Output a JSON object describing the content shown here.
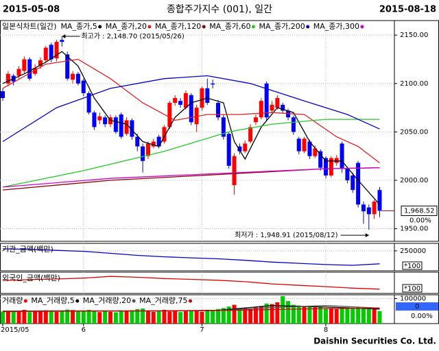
{
  "header": {
    "start": "2015-05-08",
    "title": "종합주가지수 (001), 일간",
    "end": "2015-08-18"
  },
  "footer": "Daishin Securities Co. Ltd.",
  "chart_data": [
    {
      "type": "candlestick",
      "legend_title": "일본식차트(일간)",
      "up_color": "#ff0000",
      "down_color": "#0000ff",
      "open": [
        2092,
        2100,
        2108,
        2108,
        2113,
        2125,
        2110,
        2118,
        2124,
        2140,
        2126,
        2145,
        2130,
        2104,
        2110,
        2103,
        2090,
        2070,
        2062,
        2065,
        2058,
        2065,
        2068,
        2048,
        2062,
        2045,
        2035,
        2025,
        2035,
        2045,
        2040,
        2055,
        2080,
        2082,
        2075,
        2088,
        2058,
        2075,
        2095,
        2100,
        2080,
        2065,
        2048,
        1995,
        2035,
        2030,
        2040,
        2060,
        2065,
        2100,
        2072,
        2075,
        2078,
        2072,
        2065,
        2043,
        2030,
        2040,
        2025,
        2030,
        2023,
        2005,
        2018,
        2038,
        2012,
        2005,
        2018,
        1975,
        1972,
        1965,
        1990
      ],
      "high": [
        2095,
        2113,
        2110,
        2118,
        2128,
        2127,
        2120,
        2127,
        2139,
        2142,
        2145,
        2148.7,
        2133,
        2113,
        2112,
        2105,
        2092,
        2072,
        2070,
        2067,
        2068,
        2067,
        2070,
        2065,
        2064,
        2048,
        2038,
        2040,
        2043,
        2047,
        2057,
        2082,
        2088,
        2085,
        2093,
        2090,
        2078,
        2097,
        2105,
        2104,
        2083,
        2068,
        2050,
        2028,
        2038,
        2041,
        2058,
        2068,
        2085,
        2102,
        2082,
        2088,
        2080,
        2074,
        2067,
        2045,
        2045,
        2042,
        2036,
        2032,
        2025,
        2025,
        2026,
        2040,
        2014,
        2008,
        2020,
        1978,
        1975,
        1980,
        1993
      ],
      "low": [
        2082,
        2097,
        2098,
        2105,
        2110,
        2103,
        2108,
        2115,
        2122,
        2122,
        2123,
        2138,
        2103,
        2100,
        2098,
        2087,
        2068,
        2052,
        2058,
        2055,
        2055,
        2048,
        2043,
        2046,
        2042,
        2030,
        2008,
        2022,
        2033,
        2033,
        2038,
        2053,
        2077,
        2075,
        2073,
        2057,
        2050,
        2072,
        2078,
        2095,
        2062,
        2042,
        2012,
        1985,
        2027,
        2028,
        2038,
        2057,
        2063,
        2062,
        2070,
        2073,
        2069,
        2062,
        2047,
        2027,
        2028,
        2022,
        2023,
        2010,
        2002,
        2003,
        2015,
        2008,
        1997,
        1987,
        1972,
        1955,
        1948.91,
        1960,
        1962
      ],
      "close": [
        2085,
        2110,
        2102,
        2115,
        2125,
        2105,
        2116,
        2124,
        2137,
        2125,
        2143,
        2143,
        2105,
        2110,
        2100,
        2090,
        2070,
        2055,
        2066,
        2058,
        2065,
        2050,
        2045,
        2062,
        2045,
        2035,
        2020,
        2038,
        2040,
        2035,
        2055,
        2080,
        2085,
        2078,
        2090,
        2060,
        2075,
        2095,
        2080,
        2099,
        2065,
        2045,
        2015,
        2025,
        2030,
        2038,
        2055,
        2065,
        2082,
        2065,
        2078,
        2085,
        2072,
        2065,
        2050,
        2030,
        2043,
        2025,
        2033,
        2013,
        2005,
        2023,
        2023,
        2012,
        2000,
        1990,
        1975,
        1968,
        1965,
        1978,
        1968.52
      ],
      "series": [
        {
          "name": "MA_종가,5",
          "color": "#000000",
          "x": [
            0,
            4,
            8,
            11,
            14,
            17,
            20,
            23,
            26,
            29,
            32,
            35,
            38,
            41,
            43,
            45,
            48,
            51,
            54,
            57,
            60,
            63,
            66,
            70
          ],
          "values": [
            2100,
            2110,
            2122,
            2133,
            2118,
            2085,
            2062,
            2058,
            2040,
            2035,
            2065,
            2080,
            2085,
            2080,
            2040,
            2022,
            2055,
            2075,
            2070,
            2040,
            2020,
            2020,
            2000,
            1975
          ]
        },
        {
          "name": "MA_종가,20",
          "color": "#e02020",
          "x": [
            0,
            8,
            14,
            20,
            26,
            32,
            38,
            44,
            50,
            56,
            62,
            66,
            70
          ],
          "values": [
            2095,
            2120,
            2125,
            2105,
            2080,
            2062,
            2068,
            2068,
            2070,
            2068,
            2045,
            2035,
            2018
          ]
        },
        {
          "name": "MA_종가,120",
          "color": "#8b0000",
          "x": [
            0,
            20,
            40,
            60,
            70
          ],
          "values": [
            1990,
            2000,
            2006,
            2012,
            2013
          ]
        },
        {
          "name": "MA_종가,60",
          "color": "#22cc22",
          "x": [
            0,
            15,
            30,
            42,
            50,
            60,
            70
          ],
          "values": [
            1993,
            2010,
            2030,
            2050,
            2058,
            2063,
            2063
          ]
        },
        {
          "name": "MA_종가,200",
          "color": "#0000cc",
          "x": [
            0,
            10,
            20,
            30,
            38,
            46,
            56,
            64,
            70
          ],
          "values": [
            2040,
            2075,
            2095,
            2105,
            2108,
            2100,
            2082,
            2068,
            2053
          ]
        },
        {
          "name": "MA_종가,300",
          "color": "#cc00cc",
          "x": [
            0,
            20,
            40,
            60,
            70
          ],
          "values": [
            1993,
            2002,
            2007,
            2012,
            2013
          ]
        }
      ],
      "ylim": [
        1937,
        2165
      ],
      "yticks": [
        {
          "value": 2150,
          "label": "2150.00"
        },
        {
          "value": 2100,
          "label": "2100.00"
        },
        {
          "value": 2050,
          "label": "2050.00"
        },
        {
          "value": 2000,
          "label": "2000.00"
        },
        {
          "value": 1950,
          "label": "1950.00"
        }
      ],
      "high_label": "최고가 : 2,148.70 (2015/05/26)",
      "low_label": "최저가 : 1,948.91 (2015/08/12)",
      "last_label": "1,968.52",
      "change_label": "0.00%",
      "grid": true
    },
    {
      "type": "line",
      "legend_title": "기관_금액(백만)",
      "series": [
        {
          "name": "기관_금액",
          "color": "#0000cc",
          "x": [
            0,
            5,
            10,
            15,
            20,
            25,
            30,
            35,
            40,
            45,
            50,
            55,
            60,
            65,
            70
          ],
          "values": [
            258000,
            256000,
            252000,
            248000,
            240000,
            232000,
            226000,
            222000,
            218000,
            212000,
            205000,
            200000,
            195000,
            192000,
            198000
          ]
        }
      ],
      "ylim": [
        170000,
        280000
      ],
      "yticks": [
        250000
      ],
      "scale_label": "*100",
      "grid": true
    },
    {
      "type": "line",
      "legend_title": "외국인_금액(백만)",
      "series": [
        {
          "name": "외국인_금액",
          "color": "#dd0000",
          "x": [
            0,
            5,
            10,
            15,
            20,
            25,
            30,
            35,
            40,
            45,
            50,
            55,
            60,
            65,
            70
          ],
          "values": [
            60,
            65,
            68,
            72,
            80,
            76,
            70,
            66,
            62,
            55,
            45,
            38,
            32,
            25,
            20
          ]
        }
      ],
      "ylim": [
        0,
        100
      ],
      "yticks": [],
      "scale_label": "*100",
      "grid": true
    },
    {
      "type": "volume",
      "up_color": "#ff0000",
      "down_color": "#00cc00",
      "bar_name": "거래량",
      "bar_color": "#ff0000",
      "values": [
        48000,
        52000,
        47000,
        50000,
        55000,
        46000,
        51000,
        49000,
        53000,
        50000,
        47000,
        52000,
        56000,
        54000,
        50000,
        48000,
        55000,
        52000,
        46000,
        50000,
        47000,
        45000,
        51000,
        49000,
        53000,
        58000,
        60000,
        50000,
        47000,
        52000,
        55000,
        48000,
        50000,
        46000,
        49000,
        53000,
        51000,
        47000,
        55000,
        52000,
        58000,
        62000,
        68000,
        75000,
        60000,
        62000,
        58000,
        65000,
        70000,
        80000,
        78000,
        85000,
        110000,
        90000,
        75000,
        72000,
        68000,
        70000,
        65000,
        66000,
        60000,
        62000,
        58000,
        63000,
        60000,
        59000,
        65000,
        64000,
        62000,
        58000,
        50000
      ],
      "series": [
        {
          "name": "MA_거래량,5",
          "color": "#000000",
          "x": [
            0,
            10,
            20,
            30,
            40,
            50,
            60,
            70
          ],
          "values": [
            50000,
            51000,
            50000,
            51000,
            53000,
            72000,
            66000,
            58000
          ]
        },
        {
          "name": "MA_거래량,20",
          "color": "#555555",
          "x": [
            0,
            10,
            20,
            30,
            40,
            50,
            60,
            70
          ],
          "values": [
            50000,
            50000,
            51000,
            50000,
            52000,
            64000,
            72000,
            62000
          ]
        },
        {
          "name": "MA_거래량,75",
          "color": "#cc0000",
          "x": [
            0,
            10,
            20,
            30,
            40,
            50,
            60,
            70
          ],
          "values": [
            48000,
            49000,
            50000,
            51000,
            52000,
            56000,
            60000,
            62000
          ]
        }
      ],
      "ylim": [
        0,
        115000
      ],
      "yticks": [
        100000
      ],
      "info": [
        "0",
        "0.00%"
      ],
      "xticks": [
        {
          "value": 0,
          "label": "2015/05"
        },
        {
          "value": 15,
          "label": "6"
        },
        {
          "value": 37,
          "label": "7"
        },
        {
          "value": 60,
          "label": "8"
        }
      ],
      "grid": true
    }
  ]
}
